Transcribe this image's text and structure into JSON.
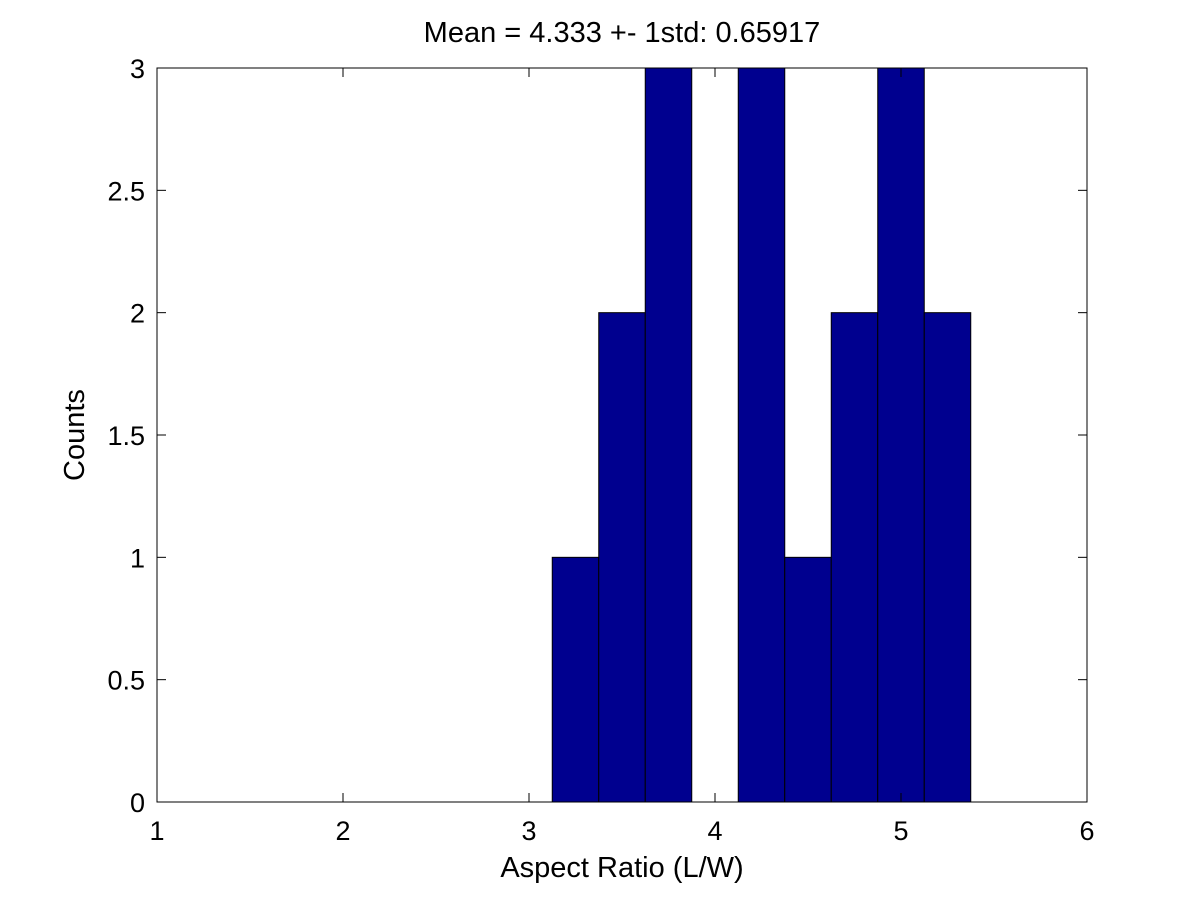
{
  "chart_data": {
    "type": "bar",
    "title": "Mean = 4.333 +- 1std: 0.65917",
    "xlabel": "Aspect Ratio (L/W)",
    "ylabel": "Counts",
    "xlim": [
      1,
      6
    ],
    "ylim": [
      0,
      3
    ],
    "xticks": [
      "1",
      "2",
      "3",
      "4",
      "5",
      "6"
    ],
    "yticks": [
      "0",
      "0.5",
      "1",
      "1.5",
      "2",
      "2.5",
      "3"
    ],
    "bin_width": 0.25,
    "bins": [
      {
        "x": 3.25,
        "count": 1
      },
      {
        "x": 3.5,
        "count": 2
      },
      {
        "x": 3.75,
        "count": 3
      },
      {
        "x": 4.0,
        "count": 0
      },
      {
        "x": 4.25,
        "count": 3
      },
      {
        "x": 4.5,
        "count": 1
      },
      {
        "x": 4.75,
        "count": 2
      },
      {
        "x": 5.0,
        "count": 3
      },
      {
        "x": 5.25,
        "count": 2
      }
    ],
    "bar_color": "#00008f",
    "edge_color": "#000000",
    "grid": false
  }
}
